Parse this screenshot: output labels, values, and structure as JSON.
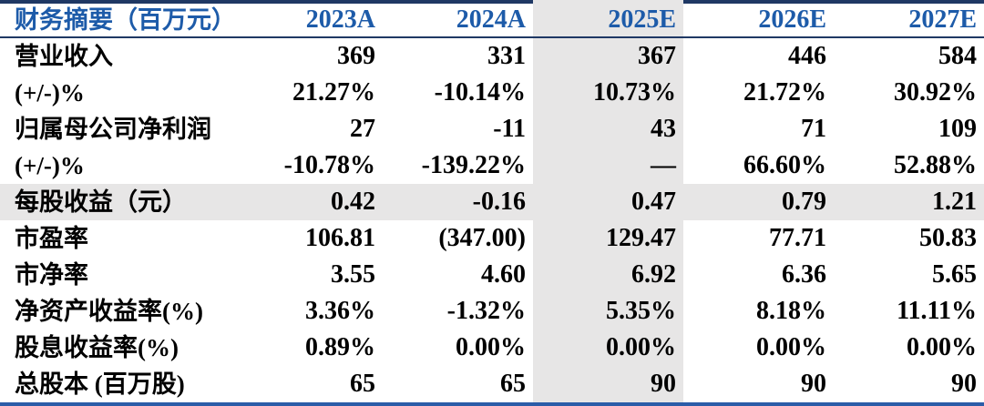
{
  "table": {
    "title": "财务摘要（百万元）",
    "header": {
      "label": "财务摘要（百万元）",
      "columns": [
        "2023A",
        "2024A",
        "2025E",
        "2026E",
        "2027E"
      ]
    },
    "highlight_column": "2025E",
    "highlight_column_index": 2,
    "rows": [
      {
        "label": "营业收入",
        "values": [
          "369",
          "331",
          "367",
          "446",
          "584"
        ],
        "highlight": false
      },
      {
        "label": "(+/-)%",
        "values": [
          "21.27%",
          "-10.14%",
          "10.73%",
          "21.72%",
          "30.92%"
        ],
        "highlight": false
      },
      {
        "label": "归属母公司净利润",
        "values": [
          "27",
          "-11",
          "43",
          "71",
          "109"
        ],
        "highlight": false
      },
      {
        "label": "(+/-)%",
        "values": [
          "-10.78%",
          "-139.22%",
          "—",
          "66.60%",
          "52.88%"
        ],
        "highlight": false
      },
      {
        "label": "每股收益（元）",
        "values": [
          "0.42",
          "-0.16",
          "0.47",
          "0.79",
          "1.21"
        ],
        "highlight": true
      },
      {
        "label": "市盈率",
        "values": [
          "106.81",
          "(347.00)",
          "129.47",
          "77.71",
          "50.83"
        ],
        "highlight": false
      },
      {
        "label": "市净率",
        "values": [
          "3.55",
          "4.60",
          "6.92",
          "6.36",
          "5.65"
        ],
        "highlight": false
      },
      {
        "label": "净资产收益率(%)",
        "values": [
          "3.36%",
          "-1.32%",
          "5.35%",
          "8.18%",
          "11.11%"
        ],
        "highlight": false
      },
      {
        "label": "股息收益率(%)",
        "values": [
          "0.89%",
          "0.00%",
          "0.00%",
          "0.00%",
          "0.00%"
        ],
        "highlight": false
      },
      {
        "label": "总股本 (百万股)",
        "values": [
          "65",
          "65",
          "90",
          "90",
          "90"
        ],
        "highlight": false
      }
    ],
    "colors": {
      "header_text": "#1d5ba9",
      "border_navy": "#1f3864",
      "border_bottom_blue": "#2b5ca8",
      "highlight_gray": "#e7e6e6"
    }
  }
}
